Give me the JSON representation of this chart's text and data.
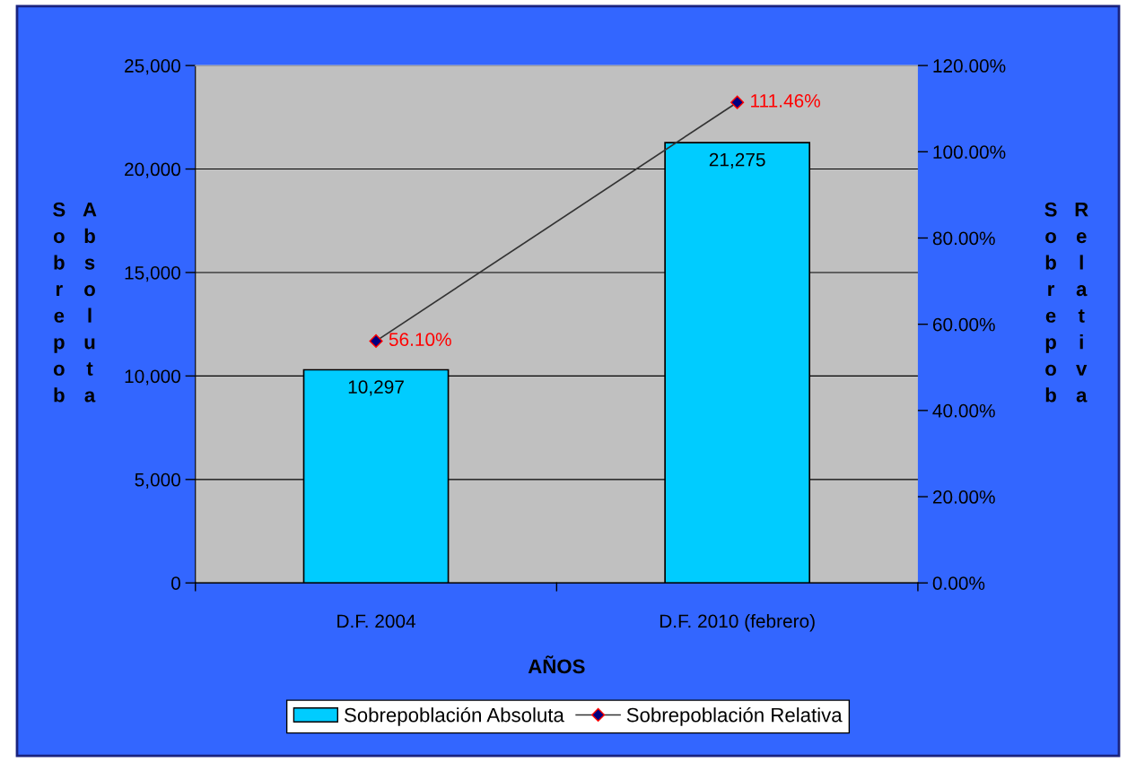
{
  "chart_data": {
    "type": "bar",
    "xlabel": "AÑOS",
    "ylabel": "Sobrepob Absoluta",
    "y2label": "Sobrepob Relativa",
    "categories": [
      "D.F. 2004",
      "D.F. 2010 (febrero)"
    ],
    "series": [
      {
        "name": "Sobrepoblación Absoluta",
        "color": "#00ccff",
        "values": [
          10297,
          21275
        ],
        "value_labels": [
          "10,297",
          "21,275"
        ]
      },
      {
        "name": "Sobrepoblación Relativa",
        "type": "line",
        "axis": "y2",
        "color": "#333333",
        "values": [
          56.1,
          111.46
        ],
        "value_labels": [
          "56.10%",
          "111.46%"
        ]
      }
    ],
    "ylim": [
      0,
      25000
    ],
    "yticks": [
      {
        "value": 0,
        "label": "0"
      },
      {
        "value": 5000,
        "label": "5,000"
      },
      {
        "value": 10000,
        "label": "10,000"
      },
      {
        "value": 15000,
        "label": "15,000"
      },
      {
        "value": 20000,
        "label": "20,000"
      },
      {
        "value": 25000,
        "label": "25,000"
      }
    ],
    "y2lim": [
      0,
      120
    ],
    "y2ticks": [
      {
        "value": 0,
        "label": "0.00%"
      },
      {
        "value": 20,
        "label": "20.00%"
      },
      {
        "value": 40,
        "label": "40.00%"
      },
      {
        "value": 60,
        "label": "60.00%"
      },
      {
        "value": 80,
        "label": "80.00%"
      },
      {
        "value": 100,
        "label": "100.00%"
      },
      {
        "value": 120,
        "label": "120.00%"
      }
    ],
    "grid": "y",
    "legend": "bottom",
    "marker": "diamond",
    "line_style": "solid"
  }
}
